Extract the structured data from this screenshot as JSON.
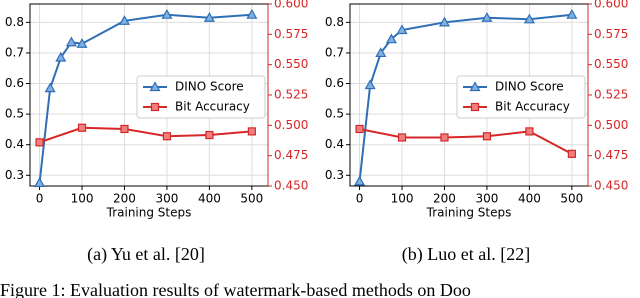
{
  "chart_data": [
    {
      "type": "line",
      "caption": "(a) Yu et al. [20]",
      "xlabel": "Training Steps",
      "xlim": [
        -22.5,
        538
      ],
      "ylim": [
        0.265,
        0.86
      ],
      "y2lim": [
        0.45,
        0.6
      ],
      "xticks": [
        0,
        100,
        200,
        300,
        400,
        500
      ],
      "yticks": [
        0.3,
        0.4,
        0.5,
        0.6,
        0.7,
        0.8
      ],
      "y2ticks": [
        {
          "value": 0.45,
          "label": "0.450"
        },
        {
          "value": 0.475,
          "label": "0.475"
        },
        {
          "value": 0.5,
          "label": "0.500"
        },
        {
          "value": 0.525,
          "label": "0.525"
        },
        {
          "value": 0.55,
          "label": "0.550"
        },
        {
          "value": 0.575,
          "label": "0.575"
        },
        {
          "value": 0.6,
          "label": "0.600"
        }
      ],
      "grid": true,
      "series": [
        {
          "name": "DINO Score",
          "color": "#2f6fb5",
          "marker": "triangle",
          "x": [
            0,
            25,
            50,
            75,
            100,
            200,
            300,
            400,
            500
          ],
          "values": [
            0.275,
            0.585,
            0.685,
            0.735,
            0.73,
            0.805,
            0.825,
            0.815,
            0.825
          ]
        },
        {
          "name": "Bit Accuracy",
          "color": "#d62728",
          "marker": "square",
          "axis": "y2",
          "x": [
            0,
            100,
            200,
            300,
            400,
            500
          ],
          "values": [
            0.486,
            0.498,
            0.497,
            0.491,
            0.492,
            0.495
          ]
        }
      ]
    },
    {
      "type": "line",
      "caption": "(b) Luo et al. [22]",
      "xlabel": "Training Steps",
      "xlim": [
        -22.5,
        538
      ],
      "ylim": [
        0.265,
        0.86
      ],
      "y2lim": [
        0.45,
        0.6
      ],
      "xticks": [
        0,
        100,
        200,
        300,
        400,
        500
      ],
      "yticks": [
        0.3,
        0.4,
        0.5,
        0.6,
        0.7,
        0.8
      ],
      "y2ticks": [
        {
          "value": 0.45,
          "label": "0.450"
        },
        {
          "value": 0.475,
          "label": "0.475"
        },
        {
          "value": 0.5,
          "label": "0.500"
        },
        {
          "value": 0.525,
          "label": "0.525"
        },
        {
          "value": 0.55,
          "label": "0.550"
        },
        {
          "value": 0.575,
          "label": "0.575"
        },
        {
          "value": 0.6,
          "label": "0.600"
        }
      ],
      "grid": true,
      "series": [
        {
          "name": "DINO Score",
          "color": "#2f6fb5",
          "marker": "triangle",
          "x": [
            0,
            25,
            50,
            75,
            100,
            200,
            300,
            400,
            500
          ],
          "values": [
            0.28,
            0.595,
            0.7,
            0.745,
            0.775,
            0.8,
            0.815,
            0.81,
            0.825
          ]
        },
        {
          "name": "Bit Accuracy",
          "color": "#d62728",
          "marker": "square",
          "axis": "y2",
          "x": [
            0,
            100,
            200,
            300,
            400,
            500
          ],
          "values": [
            0.497,
            0.49,
            0.49,
            0.491,
            0.495,
            0.4765
          ]
        }
      ]
    }
  ],
  "figure_caption": "Figure 1: Evaluation results of watermark-based methods on Doo"
}
